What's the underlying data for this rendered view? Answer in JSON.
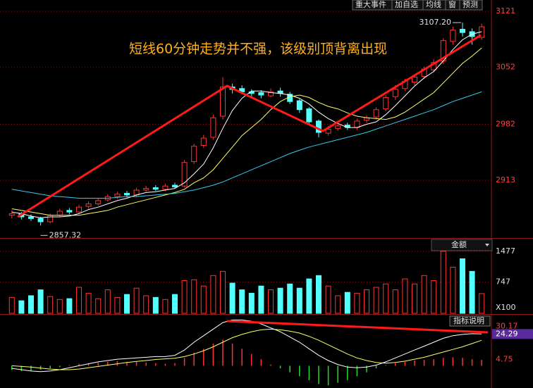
{
  "toolbar": [
    "重大事件",
    "加自选",
    "均线",
    "窗",
    "预测"
  ],
  "annotation": "短线60分钟走势并不强，该级别顶背离出现",
  "chart_data": [
    {
      "type": "candlestick",
      "up_color": "#ff3232",
      "down_color": "#54ffff",
      "grid": true,
      "ylim": [
        2842,
        3135
      ],
      "yticks": [
        2913,
        2982,
        3052,
        3121
      ],
      "open": [
        2870,
        2872,
        2868,
        2866,
        2862,
        2870,
        2876,
        2874,
        2881,
        2884,
        2889,
        2893,
        2897,
        2895,
        2901,
        2904,
        2902,
        2907,
        2906,
        2936,
        2956,
        2966,
        2992,
        3028,
        3026,
        3022,
        3021,
        3017,
        3023,
        3019,
        3011,
        3001,
        2986,
        2971,
        2977,
        2981,
        2978,
        2987,
        2991,
        3001,
        3016,
        3026,
        3034,
        3041,
        3049,
        3060,
        3084,
        3099,
        3096,
        3089
      ],
      "high": [
        2876,
        2874,
        2871,
        2868,
        2872,
        2878,
        2879,
        2883,
        2887,
        2891,
        2896,
        2899,
        2900,
        2904,
        2906,
        2907,
        2909,
        2910,
        2938,
        2958,
        2969,
        2994,
        3040,
        3032,
        3030,
        3025,
        3024,
        3026,
        3027,
        3022,
        3013,
        3003,
        2988,
        2980,
        2984,
        2984,
        2989,
        2993,
        3003,
        3018,
        3030,
        3038,
        3043,
        3053,
        3062,
        3088,
        3102,
        3107.2,
        3100,
        3106
      ],
      "low": [
        2866,
        2865,
        2863,
        2857.32,
        2860,
        2868,
        2871,
        2872,
        2878,
        2882,
        2887,
        2890,
        2892,
        2893,
        2899,
        2900,
        2900,
        2903,
        2904,
        2933,
        2953,
        2963,
        2988,
        3020,
        3019,
        3016,
        3014,
        3015,
        3016,
        3007,
        2996,
        2982,
        2966,
        2968,
        2974,
        2975,
        2975,
        2984,
        2988,
        2998,
        3012,
        3023,
        3030,
        3038,
        3046,
        3056,
        3080,
        3090,
        3080,
        3086
      ],
      "close": [
        2872,
        2868,
        2866,
        2862,
        2870,
        2875,
        2874,
        2880,
        2884,
        2888,
        2893,
        2896,
        2895,
        2901,
        2903,
        2902,
        2906,
        2905,
        2935,
        2955,
        2965,
        2990,
        3028,
        3025,
        3022,
        3020,
        3018,
        3022,
        3020,
        3010,
        3000,
        2985,
        2972,
        2976,
        2980,
        2978,
        2986,
        2990,
        3000,
        3015,
        3025,
        3035,
        3040,
        3050,
        3058,
        3085,
        3098,
        3095,
        3090,
        3102
      ],
      "lines": [
        {
          "color": "#ffffff",
          "values": [
            2874,
            2872,
            2869,
            2867,
            2868,
            2868,
            2869,
            2872,
            2877,
            2880,
            2884,
            2888,
            2891,
            2895,
            2898,
            2899,
            2901,
            2903,
            2910,
            2921,
            2933,
            2953,
            2977,
            2999,
            3014,
            3023,
            3023,
            3021,
            3020,
            3018,
            3014,
            3007,
            2997,
            2989,
            2983,
            2978,
            2978,
            2982,
            2985,
            2994,
            3005,
            3017,
            3029,
            3039,
            3047,
            3060,
            3074,
            3086,
            3093,
            3096
          ]
        },
        {
          "color": "#ffff66",
          "values": [
            2878,
            2876,
            2874,
            2872,
            2870,
            2870,
            2870,
            2870,
            2872,
            2874,
            2876,
            2880,
            2883,
            2886,
            2889,
            2892,
            2895,
            2898,
            2902,
            2910,
            2916,
            2926,
            2940,
            2954,
            2968,
            2978,
            2988,
            3000,
            3010,
            3016,
            3018,
            3015,
            3009,
            3004,
            3001,
            2996,
            2992,
            2990,
            2989,
            2988,
            2991,
            2997,
            3005,
            3013,
            3021,
            3033,
            3045,
            3057,
            3066,
            3076
          ]
        },
        {
          "color": "#33ccee",
          "values": [
            2902,
            2900,
            2898,
            2896,
            2894,
            2893,
            2892,
            2891,
            2891,
            2891,
            2891,
            2892,
            2893,
            2893,
            2894,
            2895,
            2896,
            2897,
            2899,
            2901,
            2904,
            2907,
            2911,
            2916,
            2921,
            2926,
            2931,
            2936,
            2941,
            2946,
            2950,
            2954,
            2957,
            2960,
            2963,
            2966,
            2969,
            2972,
            2976,
            2980,
            2984,
            2988,
            2992,
            2996,
            3000,
            3005,
            3010,
            3014,
            3018,
            3022
          ]
        }
      ],
      "max_price": {
        "value": 3107.2,
        "label": "3107.20"
      },
      "min_price": {
        "value": 2857.32,
        "label": "2857.32"
      }
    },
    {
      "type": "bar",
      "selector": "金额",
      "unit_label": "X100",
      "ylim": [
        0,
        1760
      ],
      "yticks": [
        747,
        1477
      ],
      "values": [
        380,
        300,
        420,
        560,
        400,
        330,
        350,
        620,
        480,
        350,
        560,
        380,
        450,
        600,
        420,
        380,
        330,
        450,
        780,
        800,
        650,
        900,
        1000,
        720,
        560,
        480,
        650,
        560,
        600,
        700,
        600,
        820,
        900,
        650,
        420,
        500,
        480,
        560,
        620,
        700,
        560,
        820,
        700,
        900,
        780,
        1477,
        1100,
        1300,
        1000,
        470
      ]
    },
    {
      "type": "macd",
      "button": "指标说明",
      "up_color": "#ff3232",
      "down_color": "#22dd22",
      "ylim": [
        -17,
        39
      ],
      "yticks": [
        4.75,
        24.29,
        30.17
      ],
      "histogram": [
        -3,
        -4,
        -4,
        -3,
        -2,
        -1,
        0.5,
        1.5,
        2,
        2.5,
        3,
        3.5,
        3,
        3,
        2.5,
        2,
        1.5,
        2,
        6,
        10,
        13,
        17,
        20,
        17,
        13,
        9,
        5,
        1,
        -2,
        -5,
        -8,
        -11,
        -14,
        -15,
        -13,
        -11,
        -8,
        -5,
        -2,
        0.5,
        2,
        3,
        4,
        4.5,
        5,
        6,
        6.5,
        6,
        5,
        4.5
      ],
      "lines": [
        {
          "color": "#ffffff",
          "values": [
            -2,
            -3,
            -4,
            -4.5,
            -4,
            -3,
            -1.5,
            0,
            1.5,
            3,
            4,
            5,
            5.5,
            6,
            6.5,
            7,
            7,
            8,
            12,
            18,
            23,
            28,
            33,
            35,
            35,
            34,
            32,
            29,
            26,
            22,
            18,
            13,
            8,
            4,
            1,
            -1,
            -1.5,
            -1,
            0.5,
            3,
            6,
            9,
            12,
            15,
            18,
            21,
            23,
            24,
            24.5,
            24.29
          ]
        },
        {
          "color": "#ffff66",
          "values": [
            0,
            -0.5,
            -1,
            -1.8,
            -2.5,
            -3,
            -3,
            -2.5,
            -1.5,
            -0.5,
            0.5,
            1.5,
            2.5,
            3.3,
            4,
            4.8,
            5.3,
            5.8,
            7,
            9,
            11.5,
            14.5,
            18,
            21.5,
            24,
            26,
            27.5,
            28,
            27.5,
            26.5,
            25,
            22.5,
            19.5,
            16,
            12.5,
            9,
            6,
            4,
            2.5,
            2,
            2.5,
            3.5,
            5,
            6.5,
            8.5,
            10.5,
            12.5,
            14.5,
            17,
            19.5
          ]
        }
      ]
    }
  ]
}
